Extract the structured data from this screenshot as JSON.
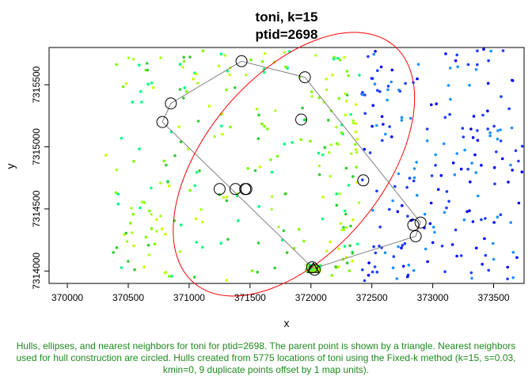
{
  "chart_data": {
    "type": "scatter",
    "title_lines": [
      "toni, k=15",
      "ptid=2698"
    ],
    "xlabel": "x",
    "ylabel": "y",
    "xlim": [
      369850,
      373750
    ],
    "ylim": [
      7313900,
      7315800
    ],
    "x_ticks": [
      370000,
      370500,
      371000,
      371500,
      372000,
      372500,
      373000,
      373500
    ],
    "y_ticks": [
      7314000,
      7314500,
      7315000,
      7315500
    ],
    "grid": false,
    "parent_point": {
      "x": 372020,
      "y": 7314020
    },
    "hull_vertices": [
      {
        "x": 371430,
        "y": 7315690
      },
      {
        "x": 371950,
        "y": 7315560
      },
      {
        "x": 372900,
        "y": 7314390
      },
      {
        "x": 372860,
        "y": 7314280
      },
      {
        "x": 372020,
        "y": 7314020
      },
      {
        "x": 370780,
        "y": 7315200
      },
      {
        "x": 370850,
        "y": 7315350
      }
    ],
    "circled_neighbors": [
      {
        "x": 371430,
        "y": 7315690
      },
      {
        "x": 371950,
        "y": 7315560
      },
      {
        "x": 370850,
        "y": 7315350
      },
      {
        "x": 370780,
        "y": 7315200
      },
      {
        "x": 371920,
        "y": 7315220
      },
      {
        "x": 372430,
        "y": 7314730
      },
      {
        "x": 371250,
        "y": 7314660
      },
      {
        "x": 371380,
        "y": 7314660
      },
      {
        "x": 371460,
        "y": 7314660
      },
      {
        "x": 371470,
        "y": 7314660
      },
      {
        "x": 372900,
        "y": 7314390
      },
      {
        "x": 372840,
        "y": 7314370
      },
      {
        "x": 372860,
        "y": 7314280
      },
      {
        "x": 372010,
        "y": 7314030
      },
      {
        "x": 372030,
        "y": 7314010
      }
    ],
    "ellipse": {
      "cx": 371860,
      "cy": 7314860,
      "rx": 900,
      "ry": 190,
      "rotation_deg": -50
    },
    "colors": {
      "hull": "#808080",
      "ellipse": "#ff0000",
      "neighbor_circle": "#000000",
      "parent_triangle": "#000000",
      "points": [
        "#0000ff",
        "#1e3cff",
        "#1e90ff",
        "#00ff7f",
        "#32cd32",
        "#7cfc00",
        "#adff2f",
        "#c8ff00"
      ],
      "caption": "#1e8a1e"
    },
    "point_cloud": "approximately 5775 location fixes shown as small colored dots (blue to yellow-green) scattered across the plot"
  },
  "caption": "Hulls, ellipses, and nearest neighbors for toni for ptid=2698. The parent point is shown by a triangle. Nearest neighbors used for hull construction are circled. Hulls created from 5775 locations of toni using the Fixed-k method (k=15, s=0.03, kmin=0, 9 duplicate points offset by 1 map units)."
}
